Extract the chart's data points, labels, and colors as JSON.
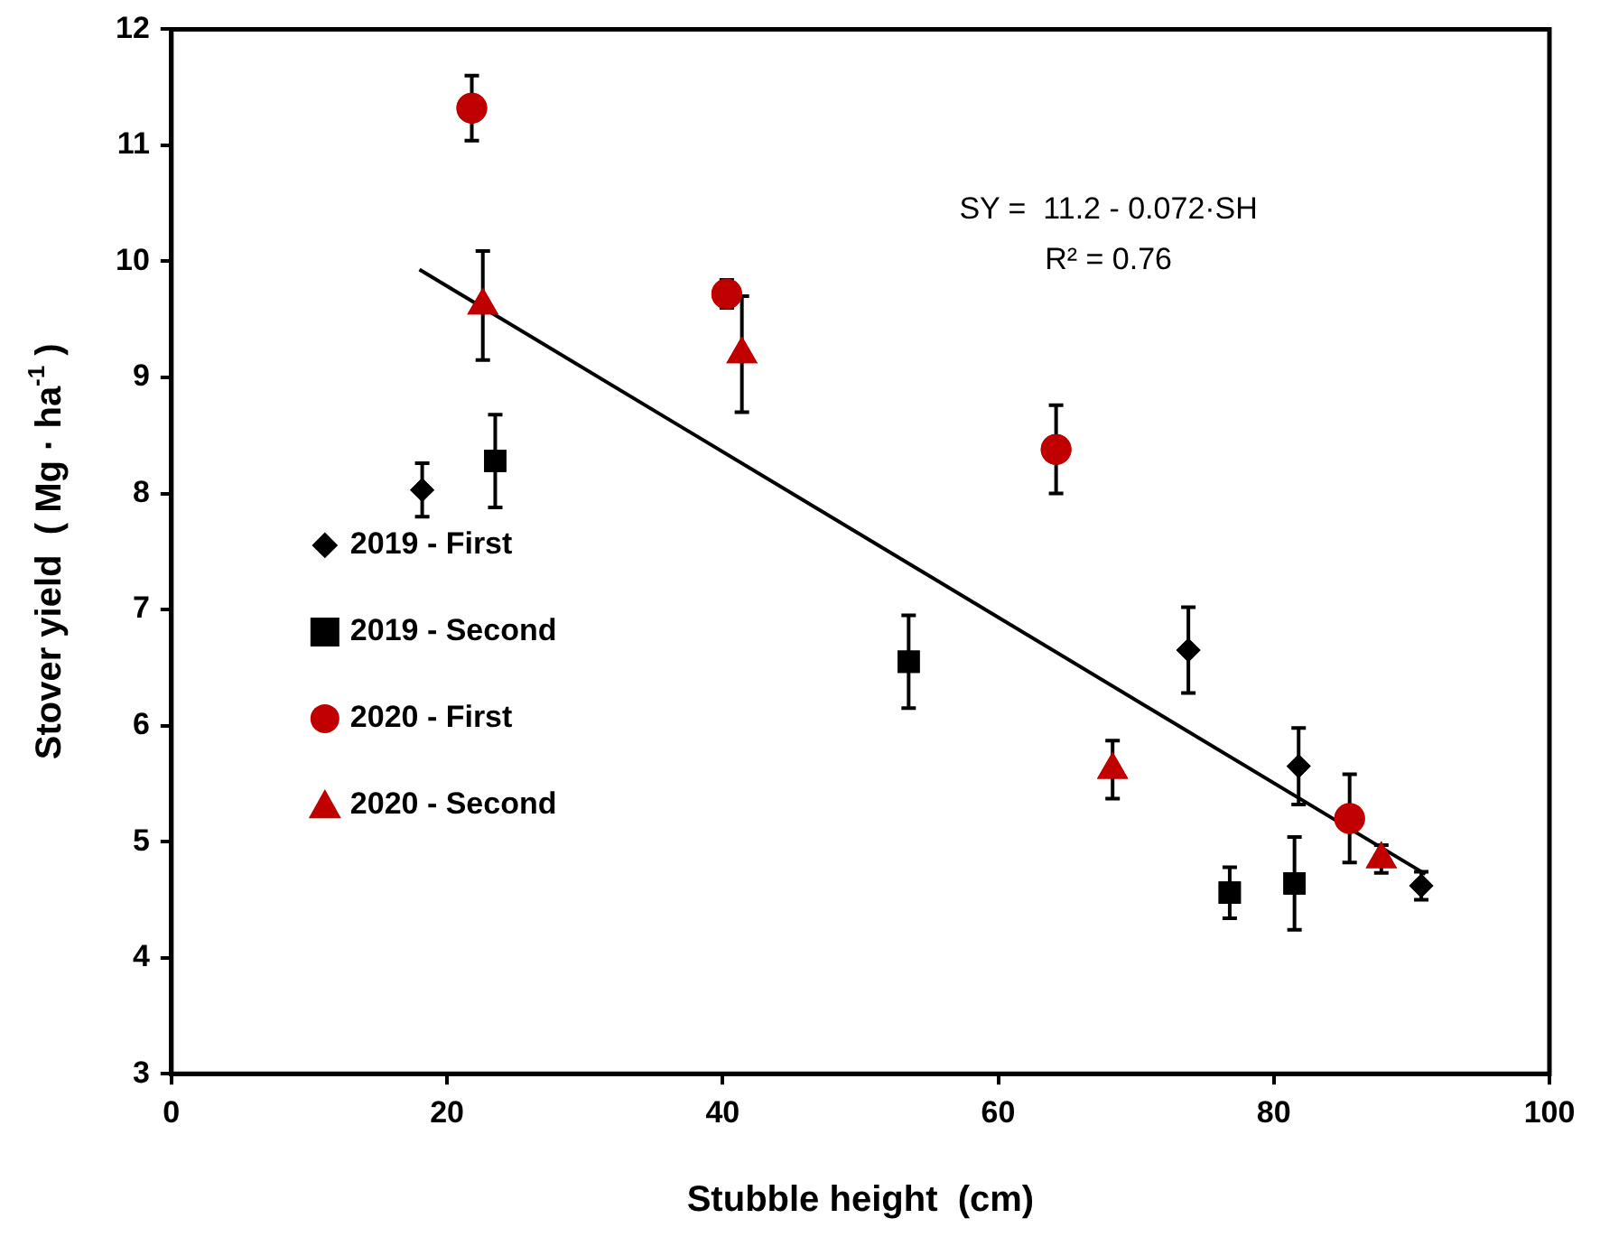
{
  "chart_data": {
    "type": "scatter",
    "xlabel": "Stubble height  (cm)",
    "ylabel": "Stover yield  ( Mg · ha$^{-1}$ )",
    "xlim": [
      0,
      100
    ],
    "xticks": [
      0,
      20,
      40,
      60,
      80,
      100
    ],
    "ylim": [
      3,
      12
    ],
    "yticks": [
      3,
      4,
      5,
      6,
      7,
      8,
      9,
      10,
      11,
      12
    ],
    "grid": false,
    "legend": "left",
    "annotations": [
      "SY =  11.2 - 0.072·SH",
      "R² = 0.76"
    ],
    "series": [
      {
        "name": "2019 - First",
        "color": "#000000",
        "marker": "diamond",
        "x": [
          18.2,
          73.8,
          81.8,
          90.7
        ],
        "values": [
          8.03,
          6.65,
          5.65,
          4.62
        ],
        "errors": [
          0.23,
          0.37,
          0.33,
          0.12
        ]
      },
      {
        "name": "2019 - Second",
        "color": "#000000",
        "marker": "square",
        "x": [
          23.5,
          53.5,
          76.8,
          81.5
        ],
        "values": [
          8.28,
          6.55,
          4.56,
          4.64
        ],
        "errors": [
          0.4,
          0.4,
          0.22,
          0.4
        ]
      },
      {
        "name": "2020 - First",
        "color": "#c00000",
        "marker": "circle",
        "x": [
          21.8,
          40.3,
          64.2,
          85.5
        ],
        "values": [
          11.32,
          9.72,
          8.38,
          5.2
        ],
        "errors": [
          0.28,
          0.12,
          0.38,
          0.38
        ]
      },
      {
        "name": "2020 - Second",
        "color": "#c00000",
        "marker": "triangle",
        "x": [
          22.6,
          41.4,
          68.3,
          87.8
        ],
        "values": [
          9.62,
          9.2,
          5.62,
          4.85
        ],
        "errors": [
          0.47,
          0.5,
          0.25,
          0.12
        ]
      },
      {
        "type": "line",
        "color": "#000000",
        "marker": "none",
        "x": [
          18,
          91
        ],
        "values": [
          9.93,
          4.72
        ]
      }
    ]
  }
}
